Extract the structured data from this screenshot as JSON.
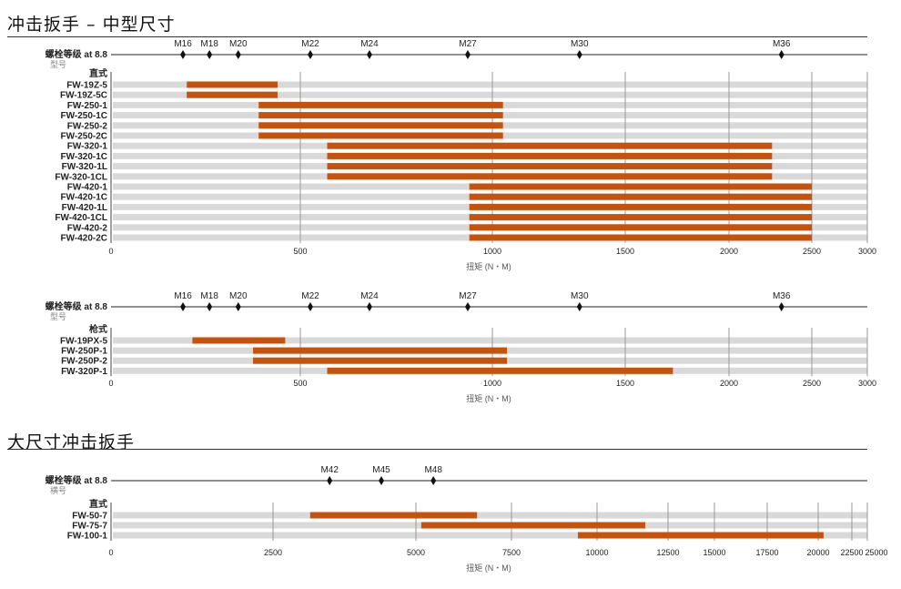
{
  "colors": {
    "bar": "#c6520e",
    "track": "#d9d9d9",
    "grid": "#999999"
  },
  "chart_data": [
    {
      "type": "bar",
      "title": "冲击扳手 – 中型尺寸",
      "bolt_label": "螺栓等级 at 8.8",
      "model_label": "型号",
      "group_label": "直式",
      "xlabel": "扭矩 (N・M)",
      "ticks": [
        0,
        500,
        1000,
        1500,
        2000,
        2500,
        3000
      ],
      "xlim": [
        0,
        3000
      ],
      "markers": [
        {
          "label": "M16",
          "value": 190
        },
        {
          "label": "M18",
          "value": 260
        },
        {
          "label": "M20",
          "value": 336
        },
        {
          "label": "M22",
          "value": 526
        },
        {
          "label": "M24",
          "value": 680
        },
        {
          "label": "M27",
          "value": 936
        },
        {
          "label": "M30",
          "value": 1328
        },
        {
          "label": "M36",
          "value": 2317
        }
      ],
      "rows": [
        {
          "name": "FW-19Z-5",
          "range": [
            200,
            440
          ]
        },
        {
          "name": "FW-19Z-5C",
          "range": [
            200,
            440
          ]
        },
        {
          "name": "FW-250-1",
          "range": [
            390,
            1040
          ]
        },
        {
          "name": "FW-250-1C",
          "range": [
            390,
            1040
          ]
        },
        {
          "name": "FW-250-2",
          "range": [
            390,
            1040
          ]
        },
        {
          "name": "FW-250-2C",
          "range": [
            390,
            1040
          ]
        },
        {
          "name": "FW-320-1",
          "range": [
            570,
            2260
          ]
        },
        {
          "name": "FW-320-1C",
          "range": [
            570,
            2260
          ]
        },
        {
          "name": "FW-320-1L",
          "range": [
            570,
            2260
          ]
        },
        {
          "name": "FW-320-1CL",
          "range": [
            570,
            2260
          ]
        },
        {
          "name": "FW-420-1",
          "range": [
            940,
            2500
          ]
        },
        {
          "name": "FW-420-1C",
          "range": [
            940,
            2500
          ]
        },
        {
          "name": "FW-420-1L",
          "range": [
            940,
            2500
          ]
        },
        {
          "name": "FW-420-1CL",
          "range": [
            940,
            2500
          ]
        },
        {
          "name": "FW-420-2",
          "range": [
            940,
            2500
          ]
        },
        {
          "name": "FW-420-2C",
          "range": [
            940,
            2500
          ]
        }
      ]
    },
    {
      "type": "bar",
      "bolt_label": "螺栓等级 at 8.8",
      "model_label": "型号",
      "group_label": "枪式",
      "xlabel": "扭矩 (N・M)",
      "ticks": [
        0,
        500,
        1000,
        1500,
        2000,
        2500,
        3000
      ],
      "xlim": [
        0,
        3000
      ],
      "markers": [
        {
          "label": "M16",
          "value": 190
        },
        {
          "label": "M18",
          "value": 260
        },
        {
          "label": "M20",
          "value": 336
        },
        {
          "label": "M22",
          "value": 526
        },
        {
          "label": "M24",
          "value": 680
        },
        {
          "label": "M27",
          "value": 936
        },
        {
          "label": "M30",
          "value": 1328
        },
        {
          "label": "M36",
          "value": 2317
        }
      ],
      "rows": [
        {
          "name": "FW-19PX-5",
          "range": [
            215,
            460
          ]
        },
        {
          "name": "FW-250P-1",
          "range": [
            375,
            1055
          ]
        },
        {
          "name": "FW-250P-2",
          "range": [
            375,
            1055
          ]
        },
        {
          "name": "FW-320P-1",
          "range": [
            570,
            1730
          ]
        }
      ]
    },
    {
      "type": "bar",
      "title": "大尺寸冲击扳手",
      "bolt_label": "螺栓等级 at 8.8",
      "model_label": "横号",
      "group_label": "直式",
      "xlabel": "扭矩 (N・M)",
      "ticks": [
        0,
        2500,
        5000,
        7500,
        10000,
        12500,
        15000,
        17500,
        20000,
        22500,
        25000
      ],
      "xlim": [
        0,
        25000
      ],
      "markers": [
        {
          "label": "M42",
          "value": 3490
        },
        {
          "label": "M45",
          "value": 4395
        },
        {
          "label": "M48",
          "value": 5457
        }
      ],
      "rows": [
        {
          "name": "FW-50-7",
          "range": [
            3150,
            6600
          ]
        },
        {
          "name": "FW-75-7",
          "range": [
            5140,
            11700
          ]
        },
        {
          "name": "FW-100-1",
          "range": [
            9440,
            20400
          ]
        }
      ]
    }
  ]
}
